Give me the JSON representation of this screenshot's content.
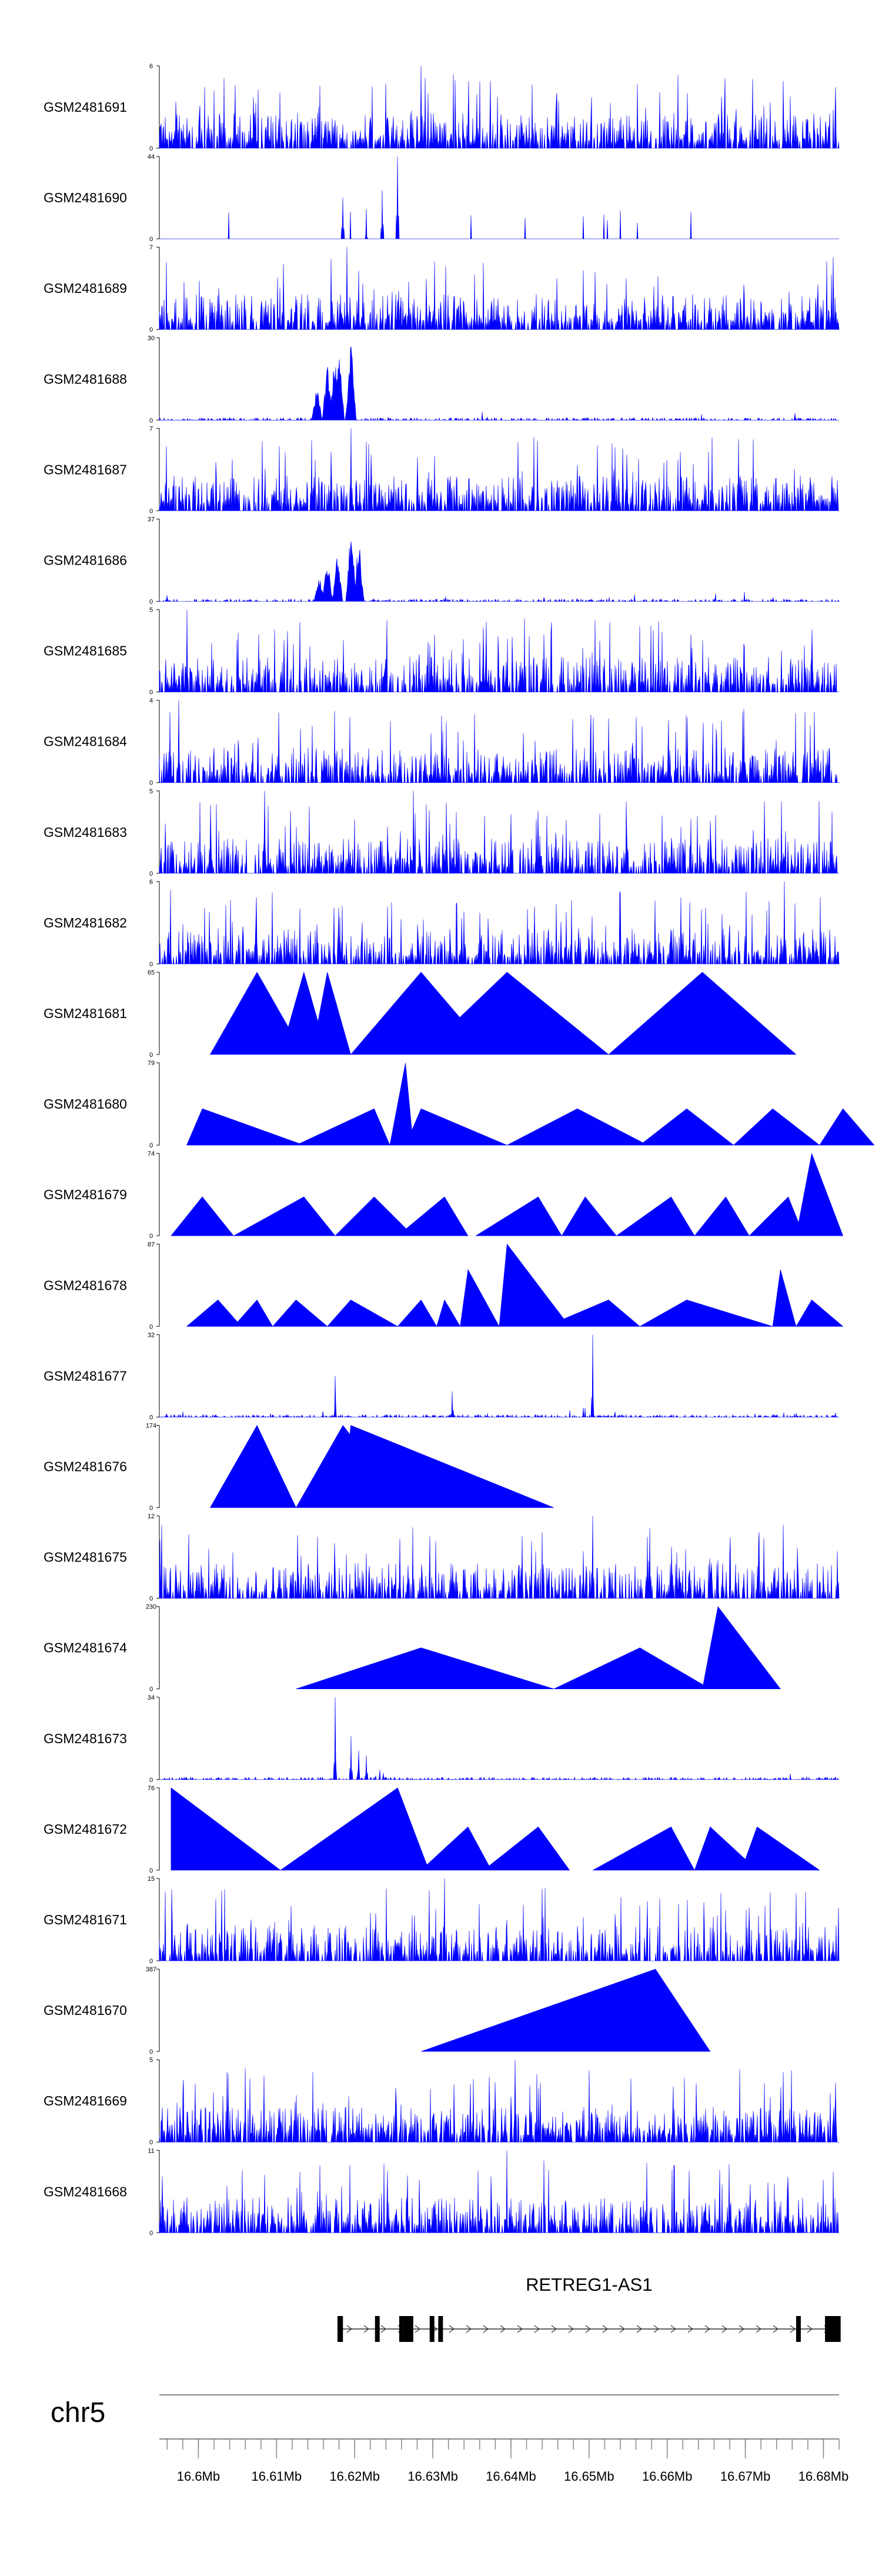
{
  "chart_data": {
    "type": "area",
    "title": "",
    "fill_color": "#0000ff",
    "x_unit": "Mb",
    "xlim": [
      16.595,
      16.682
    ],
    "tracks": [
      {
        "name": "GSM2481691",
        "ymax": "6",
        "ylim": [
          0,
          6
        ],
        "pattern": "dense",
        "seed": 11,
        "density": 0.55,
        "peaks": [
          [
            16.6285,
            6
          ]
        ]
      },
      {
        "name": "GSM2481690",
        "ymax": "44",
        "ylim": [
          0,
          44
        ],
        "pattern": "sparse",
        "seed": 23,
        "peaks": [
          [
            16.6255,
            44
          ],
          [
            16.6185,
            22
          ],
          [
            16.6215,
            16
          ],
          [
            16.6235,
            26
          ]
        ]
      },
      {
        "name": "GSM2481689",
        "ymax": "7",
        "ylim": [
          0,
          7
        ],
        "pattern": "dense",
        "seed": 37,
        "density": 0.55,
        "peaks": [
          [
            16.619,
            7
          ],
          [
            16.617,
            6
          ],
          [
            16.6205,
            5
          ]
        ]
      },
      {
        "name": "GSM2481688",
        "ymax": "30",
        "ylim": [
          0,
          30
        ],
        "pattern": "bump",
        "seed": 41,
        "peaks": [
          [
            16.6195,
            30
          ],
          [
            16.6175,
            27
          ],
          [
            16.6165,
            22
          ],
          [
            16.6152,
            14
          ],
          [
            16.618,
            25
          ]
        ]
      },
      {
        "name": "GSM2481687",
        "ymax": "7",
        "ylim": [
          0,
          7
        ],
        "pattern": "dense",
        "seed": 53,
        "density": 0.5,
        "peaks": [
          [
            16.6195,
            7
          ],
          [
            16.6145,
            6
          ],
          [
            16.617,
            5
          ]
        ]
      },
      {
        "name": "GSM2481686",
        "ymax": "37",
        "ylim": [
          0,
          37
        ],
        "pattern": "bump",
        "seed": 67,
        "peaks": [
          [
            16.6195,
            37
          ],
          [
            16.6178,
            24
          ],
          [
            16.6165,
            20
          ],
          [
            16.6155,
            12
          ],
          [
            16.6205,
            30
          ]
        ]
      },
      {
        "name": "GSM2481685",
        "ymax": "5",
        "ylim": [
          0,
          5
        ],
        "pattern": "dense",
        "seed": 71,
        "density": 0.5,
        "peaks": [
          [
            16.5985,
            5
          ]
        ]
      },
      {
        "name": "GSM2481684",
        "ymax": "4",
        "ylim": [
          0,
          4
        ],
        "pattern": "dense",
        "seed": 83,
        "density": 0.5,
        "peaks": [
          [
            16.5975,
            4
          ]
        ]
      },
      {
        "name": "GSM2481683",
        "ymax": "5",
        "ylim": [
          0,
          5
        ],
        "pattern": "dense",
        "seed": 97,
        "density": 0.5,
        "peaks": [
          [
            16.6085,
            5
          ],
          [
            16.6275,
            5
          ]
        ]
      },
      {
        "name": "GSM2481682",
        "ymax": "6",
        "ylim": [
          0,
          6
        ],
        "pattern": "dense",
        "seed": 101,
        "density": 0.5,
        "peaks": [
          [
            16.675,
            6
          ]
        ]
      },
      {
        "name": "GSM2481681",
        "ymax": "65",
        "ylim": [
          0,
          65
        ],
        "pattern": "triangles",
        "tris": [
          [
            16.6015,
            16.6075,
            16.6135,
            65
          ],
          [
            16.6105,
            16.6135,
            16.6165,
            65
          ],
          [
            16.6145,
            16.6165,
            16.6195,
            65
          ],
          [
            16.6195,
            16.6285,
            16.6375,
            65
          ],
          [
            16.6285,
            16.6395,
            16.6525,
            65
          ],
          [
            16.6525,
            16.6645,
            16.6765,
            65
          ]
        ]
      },
      {
        "name": "GSM2481680",
        "ymax": "79",
        "ylim": [
          0,
          79
        ],
        "pattern": "triangles",
        "tris": [
          [
            16.5985,
            16.6005,
            16.6135,
            35
          ],
          [
            16.6125,
            16.6225,
            16.6245,
            35
          ],
          [
            16.6245,
            16.6265,
            16.6275,
            79
          ],
          [
            16.6265,
            16.6285,
            16.6395,
            35
          ],
          [
            16.6395,
            16.6485,
            16.6575,
            35
          ],
          [
            16.6565,
            16.6625,
            16.6685,
            35
          ],
          [
            16.6685,
            16.6735,
            16.6795,
            35
          ],
          [
            16.6795,
            16.6825,
            16.6865,
            35
          ]
        ]
      },
      {
        "name": "GSM2481679",
        "ymax": "74",
        "ylim": [
          0,
          74
        ],
        "pattern": "triangles",
        "tris": [
          [
            16.5965,
            16.6005,
            16.6045,
            35
          ],
          [
            16.6045,
            16.6135,
            16.6175,
            35
          ],
          [
            16.6175,
            16.6225,
            16.6275,
            35
          ],
          [
            16.6255,
            16.6315,
            16.6345,
            35
          ],
          [
            16.6355,
            16.6435,
            16.6465,
            35
          ],
          [
            16.6465,
            16.6495,
            16.6535,
            35
          ],
          [
            16.6535,
            16.6605,
            16.6635,
            35
          ],
          [
            16.6635,
            16.6675,
            16.6705,
            35
          ],
          [
            16.6705,
            16.6755,
            16.6775,
            35
          ],
          [
            16.6765,
            16.6785,
            16.6825,
            74
          ]
        ]
      },
      {
        "name": "GSM2481678",
        "ymax": "87",
        "ylim": [
          0,
          87
        ],
        "pattern": "triangles",
        "tris": [
          [
            16.5985,
            16.6025,
            16.6055,
            28
          ],
          [
            16.6045,
            16.6075,
            16.6095,
            28
          ],
          [
            16.6095,
            16.6125,
            16.6165,
            28
          ],
          [
            16.6165,
            16.6195,
            16.6255,
            28
          ],
          [
            16.6255,
            16.6285,
            16.6305,
            28
          ],
          [
            16.6305,
            16.6315,
            16.6335,
            28
          ],
          [
            16.6335,
            16.6345,
            16.6385,
            60
          ],
          [
            16.6385,
            16.6395,
            16.6475,
            87
          ],
          [
            16.6445,
            16.6525,
            16.6565,
            28
          ],
          [
            16.6565,
            16.6625,
            16.6735,
            28
          ],
          [
            16.6735,
            16.6745,
            16.6765,
            60
          ],
          [
            16.6765,
            16.6785,
            16.6825,
            28
          ]
        ]
      },
      {
        "name": "GSM2481677",
        "ymax": "32",
        "ylim": [
          0,
          32
        ],
        "pattern": "lowspike",
        "seed": 131,
        "peaks": [
          [
            16.6505,
            32
          ],
          [
            16.6175,
            16
          ],
          [
            16.6325,
            10
          ]
        ]
      },
      {
        "name": "GSM2481676",
        "ymax": "174",
        "ylim": [
          0,
          174
        ],
        "pattern": "triangles",
        "tris": [
          [
            16.6015,
            16.6075,
            16.6125,
            174
          ],
          [
            16.6125,
            16.6185,
            16.6265,
            174
          ],
          [
            16.6185,
            16.6195,
            16.6455,
            174
          ]
        ]
      },
      {
        "name": "GSM2481675",
        "ymax": "12",
        "ylim": [
          0,
          12
        ],
        "pattern": "dense",
        "seed": 149,
        "density": 0.45,
        "peaks": [
          [
            16.6505,
            12
          ]
        ]
      },
      {
        "name": "GSM2481674",
        "ymax": "230",
        "ylim": [
          0,
          230
        ],
        "pattern": "triangles",
        "tris": [
          [
            16.6125,
            16.6285,
            16.6455,
            115
          ],
          [
            16.6455,
            16.6565,
            16.6655,
            115
          ],
          [
            16.6645,
            16.6665,
            16.6745,
            230
          ]
        ]
      },
      {
        "name": "GSM2481673",
        "ymax": "34",
        "ylim": [
          0,
          34
        ],
        "pattern": "lowspike",
        "seed": 163,
        "peaks": [
          [
            16.6175,
            34
          ],
          [
            16.6195,
            18
          ],
          [
            16.6205,
            12
          ],
          [
            16.6215,
            10
          ]
        ]
      },
      {
        "name": "GSM2481672",
        "ymax": "76",
        "ylim": [
          0,
          76
        ],
        "pattern": "triangles",
        "tris": [
          [
            16.5965,
            16.5965,
            16.6105,
            76
          ],
          [
            16.6105,
            16.6255,
            16.6295,
            76
          ],
          [
            16.6285,
            16.6345,
            16.6375,
            40
          ],
          [
            16.6365,
            16.6435,
            16.6475,
            40
          ],
          [
            16.6505,
            16.6605,
            16.6635,
            40
          ],
          [
            16.6635,
            16.6655,
            16.6715,
            40
          ],
          [
            16.6695,
            16.6715,
            16.6795,
            40
          ]
        ]
      },
      {
        "name": "GSM2481671",
        "ymax": "15",
        "ylim": [
          0,
          15
        ],
        "pattern": "dense",
        "seed": 181,
        "density": 0.45,
        "peaks": [
          [
            16.6315,
            15
          ]
        ]
      },
      {
        "name": "GSM2481670",
        "ymax": "387",
        "ylim": [
          0,
          387
        ],
        "pattern": "triangles",
        "tris": [
          [
            16.6285,
            16.6585,
            16.6655,
            387
          ]
        ]
      },
      {
        "name": "GSM2481669",
        "ymax": "5",
        "ylim": [
          0,
          5
        ],
        "pattern": "dense",
        "seed": 197,
        "density": 0.6,
        "peaks": [
          [
            16.6405,
            5
          ]
        ]
      },
      {
        "name": "GSM2481668",
        "ymax": "11",
        "ylim": [
          0,
          11
        ],
        "pattern": "dense",
        "seed": 211,
        "density": 0.5,
        "peaks": [
          [
            16.6395,
            11
          ]
        ]
      }
    ],
    "gene": {
      "name": "RETREG1-AS1",
      "start": 16.6178,
      "end": 16.6822,
      "exons": [
        [
          16.6178,
          16.6185
        ],
        [
          16.6226,
          16.6232
        ],
        [
          16.6257,
          16.6262
        ],
        [
          16.6262,
          16.6275
        ],
        [
          16.6296,
          16.6302
        ],
        [
          16.6307,
          16.6313
        ],
        [
          16.6765,
          16.6771
        ],
        [
          16.6802,
          16.6822
        ]
      ]
    },
    "chromosome": "chr5",
    "axis": {
      "min": 16.595,
      "max": 16.682,
      "ticks": [
        "16.6Mb",
        "16.61Mb",
        "16.62Mb",
        "16.63Mb",
        "16.64Mb",
        "16.65Mb",
        "16.66Mb",
        "16.67Mb",
        "16.68Mb"
      ],
      "tick_values": [
        16.6,
        16.61,
        16.62,
        16.63,
        16.64,
        16.65,
        16.66,
        16.67,
        16.68
      ],
      "minor_step": 0.002
    }
  }
}
